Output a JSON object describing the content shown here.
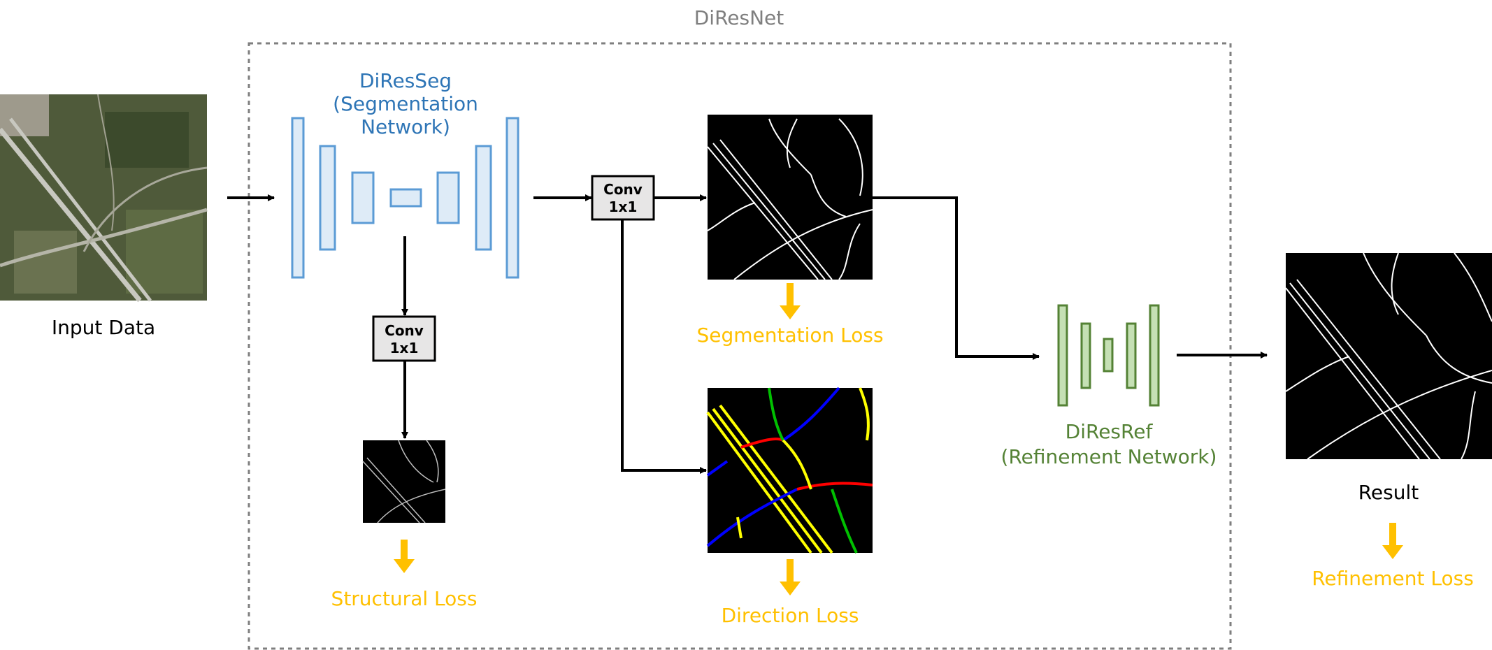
{
  "title": "DiResNet",
  "input_label": "Input Data",
  "segmentation_network": {
    "name": "DiResSeg",
    "line2": "(Segmentation",
    "line3": "Network)"
  },
  "refinement_network": {
    "name": "DiResRef",
    "line2": "(Refinement Network)"
  },
  "conv_blocks": [
    {
      "line1": "Conv",
      "line2": "1x1"
    },
    {
      "line1": "Conv",
      "line2": "1x1"
    }
  ],
  "losses": {
    "structural": "Structural Loss",
    "segmentation": "Segmentation Loss",
    "direction": "Direction Loss",
    "refinement": "Refinement Loss"
  },
  "result_label": "Result",
  "colors": {
    "seg_network": "#2e75b6",
    "seg_block_fill": "#deebf7",
    "ref_network": "#548235",
    "ref_block_fill": "#c5e0b4",
    "loss": "#ffc000",
    "frame": "#7f7f7f",
    "direction_yellow": "#ffff00",
    "direction_red": "#ff0000",
    "direction_blue": "#0000ff",
    "direction_green": "#00c000"
  }
}
